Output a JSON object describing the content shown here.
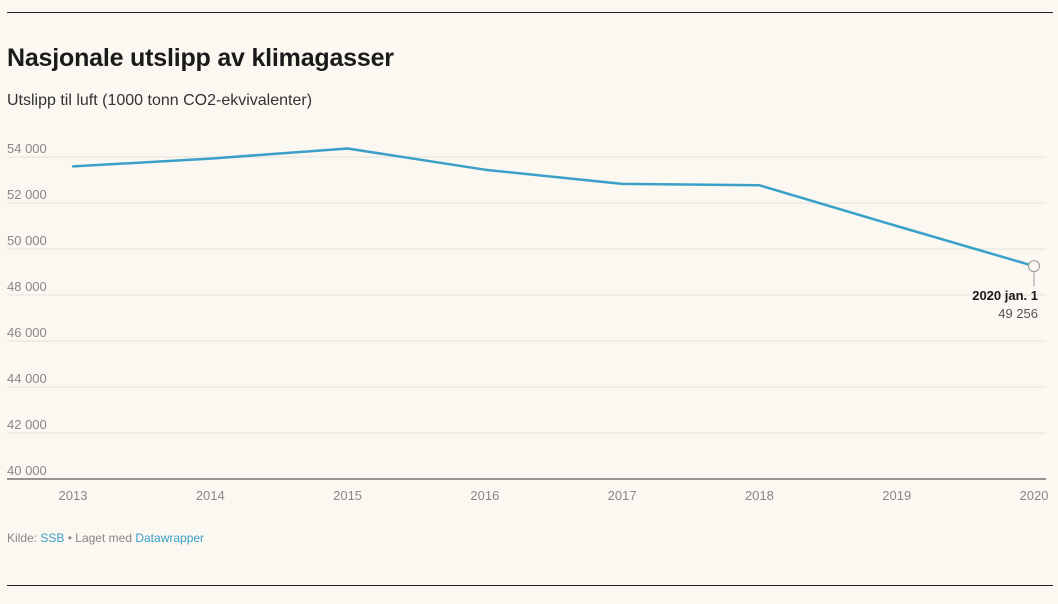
{
  "title": "Nasjonale utslipp av klimagasser",
  "subtitle": "Utslipp til luft (1000 tonn CO2-ekvivalenter)",
  "footer": {
    "source_label": "Kilde:",
    "source_link": "SSB",
    "separator": "•",
    "made_with": "Laget med",
    "made_with_link": "Datawrapper"
  },
  "colors": {
    "line": "#3aa0c8",
    "grid": "#e6e2da",
    "axis_text": "#888888",
    "text": "#1a1a1a"
  },
  "chart_data": {
    "type": "line",
    "title": "Nasjonale utslipp av klimagasser",
    "subtitle": "Utslipp til luft (1000 tonn CO2-ekvivalenter)",
    "x": [
      2013,
      2014,
      2015,
      2016,
      2017,
      2018,
      2019,
      2020
    ],
    "series": [
      {
        "values": [
          53590,
          53930,
          54370,
          53450,
          52830,
          52770,
          51000,
          49256
        ]
      }
    ],
    "ylim": [
      40000,
      55000
    ],
    "yticks": [
      40000,
      42000,
      44000,
      46000,
      48000,
      50000,
      52000,
      54000
    ],
    "ytick_labels": [
      "40 000",
      "42 000",
      "44 000",
      "46 000",
      "48 000",
      "50 000",
      "52 000",
      "54 000"
    ],
    "xtick_labels": [
      "2013",
      "2014",
      "2015",
      "2016",
      "2017",
      "2018",
      "2019",
      "2020"
    ],
    "grid": true,
    "annotation": {
      "x": 2020,
      "label": "2020 jan. 1",
      "value_label": "49 256"
    }
  }
}
